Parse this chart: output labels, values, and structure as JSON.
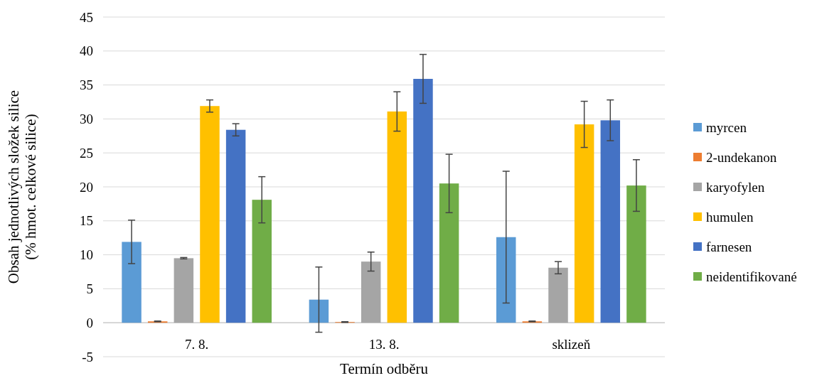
{
  "chart_data": {
    "type": "bar",
    "xlabel": "Termín odběru",
    "ylabel": "Obsah jednotlivých složek silice\n(% hmot. celkové silice)",
    "categories": [
      "7. 8.",
      "13. 8.",
      "sklizeň"
    ],
    "ylim": [
      -5,
      45
    ],
    "yticks": [
      -5,
      0,
      5,
      10,
      15,
      20,
      25,
      30,
      35,
      40,
      45
    ],
    "grid": "y",
    "legend": "right",
    "series": [
      {
        "name": "myrcen",
        "color": "#5b9bd5",
        "values": [
          11.9,
          3.4,
          12.6
        ],
        "errors": [
          3.2,
          4.8,
          9.7
        ]
      },
      {
        "name": "2-undekanon",
        "color": "#ed7d31",
        "values": [
          0.2,
          0.1,
          0.2
        ],
        "errors": [
          0.05,
          0.05,
          0.05
        ]
      },
      {
        "name": "karyofylen",
        "color": "#a5a5a5",
        "values": [
          9.5,
          9.0,
          8.1
        ],
        "errors": [
          0.1,
          1.4,
          0.9
        ]
      },
      {
        "name": "humulen",
        "color": "#ffc000",
        "values": [
          31.9,
          31.1,
          29.2
        ],
        "errors": [
          0.9,
          2.9,
          3.4
        ]
      },
      {
        "name": "farnesen",
        "color": "#4472c4",
        "values": [
          28.4,
          35.9,
          29.8
        ],
        "errors": [
          0.9,
          3.6,
          3.0
        ]
      },
      {
        "name": "neidentifikované",
        "color": "#70ad47",
        "values": [
          18.1,
          20.5,
          20.2
        ],
        "errors": [
          3.4,
          4.3,
          3.8
        ]
      }
    ]
  }
}
